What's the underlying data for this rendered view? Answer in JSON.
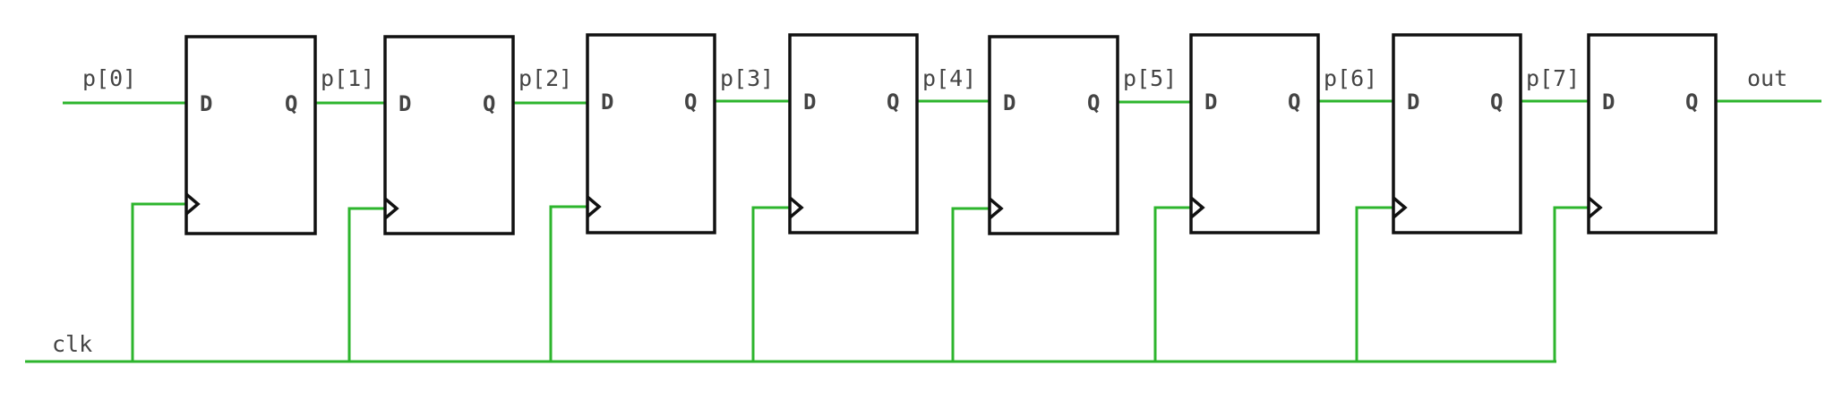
{
  "flip_flops": [
    {
      "d_port": "D",
      "q_port": "Q"
    },
    {
      "d_port": "D",
      "q_port": "Q"
    },
    {
      "d_port": "D",
      "q_port": "Q"
    },
    {
      "d_port": "D",
      "q_port": "Q"
    },
    {
      "d_port": "D",
      "q_port": "Q"
    },
    {
      "d_port": "D",
      "q_port": "Q"
    },
    {
      "d_port": "D",
      "q_port": "Q"
    },
    {
      "d_port": "D",
      "q_port": "Q"
    }
  ],
  "nets": {
    "inputs": [
      "p[0]",
      "p[1]",
      "p[2]",
      "p[3]",
      "p[4]",
      "p[5]",
      "p[6]",
      "p[7]"
    ],
    "output": "out",
    "clock": "clk"
  },
  "colors": {
    "wire": "#2db52d",
    "block_stroke": "#111111",
    "label_text": "#444444"
  }
}
